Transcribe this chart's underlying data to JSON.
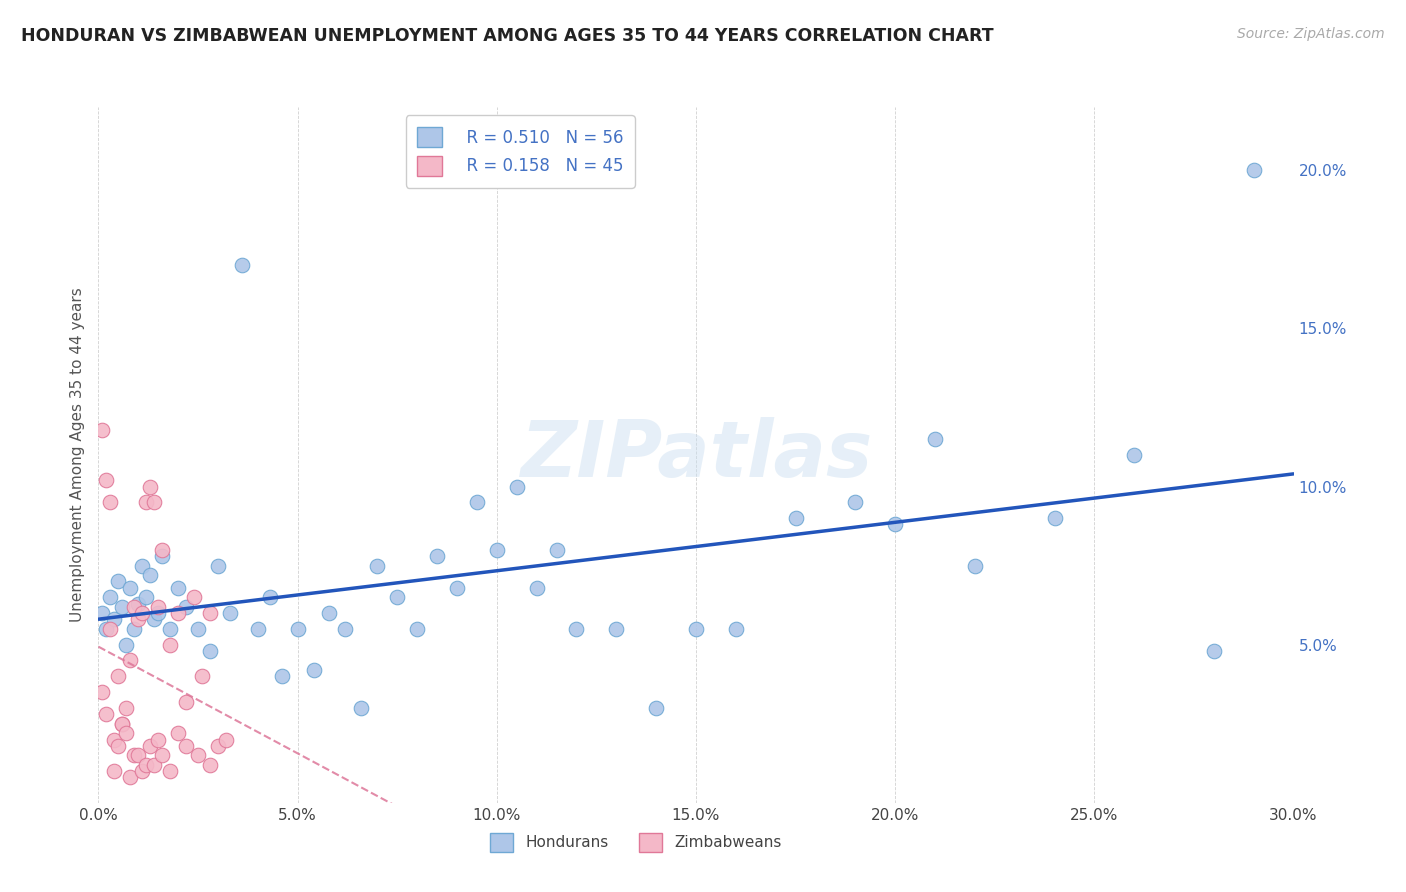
{
  "title": "HONDURAN VS ZIMBABWEAN UNEMPLOYMENT AMONG AGES 35 TO 44 YEARS CORRELATION CHART",
  "source": "Source: ZipAtlas.com",
  "ylabel": "Unemployment Among Ages 35 to 44 years",
  "xlim": [
    0.0,
    0.3
  ],
  "ylim": [
    0.0,
    0.22
  ],
  "honduran_color": "#aec6e8",
  "honduran_edge": "#6fa8d4",
  "zimbabwean_color": "#f4b8c8",
  "zimbabwean_edge": "#e07898",
  "trendline_honduran_color": "#2255bb",
  "trendline_zimbabwean_color": "#dd7799",
  "legend_R_honduran": "R = 0.510",
  "legend_N_honduran": "N = 56",
  "legend_R_zimbabwean": "R = 0.158",
  "legend_N_zimbabwean": "N = 45",
  "watermark": "ZIPatlas",
  "honduran_x": [
    0.001,
    0.002,
    0.003,
    0.004,
    0.005,
    0.006,
    0.007,
    0.008,
    0.009,
    0.01,
    0.011,
    0.012,
    0.013,
    0.014,
    0.015,
    0.016,
    0.018,
    0.02,
    0.022,
    0.025,
    0.028,
    0.03,
    0.033,
    0.036,
    0.04,
    0.043,
    0.046,
    0.05,
    0.054,
    0.058,
    0.062,
    0.066,
    0.07,
    0.075,
    0.08,
    0.085,
    0.09,
    0.095,
    0.1,
    0.105,
    0.11,
    0.115,
    0.12,
    0.13,
    0.14,
    0.15,
    0.16,
    0.175,
    0.19,
    0.2,
    0.21,
    0.22,
    0.24,
    0.26,
    0.28,
    0.29
  ],
  "honduran_y": [
    0.06,
    0.055,
    0.065,
    0.058,
    0.07,
    0.062,
    0.05,
    0.068,
    0.055,
    0.063,
    0.075,
    0.065,
    0.072,
    0.058,
    0.06,
    0.078,
    0.055,
    0.068,
    0.062,
    0.055,
    0.048,
    0.075,
    0.06,
    0.17,
    0.055,
    0.065,
    0.04,
    0.055,
    0.042,
    0.06,
    0.055,
    0.03,
    0.075,
    0.065,
    0.055,
    0.078,
    0.068,
    0.095,
    0.08,
    0.1,
    0.068,
    0.08,
    0.055,
    0.055,
    0.03,
    0.055,
    0.055,
    0.09,
    0.095,
    0.088,
    0.115,
    0.075,
    0.09,
    0.11,
    0.048,
    0.2
  ],
  "zimbabwean_x": [
    0.001,
    0.002,
    0.003,
    0.004,
    0.005,
    0.006,
    0.007,
    0.008,
    0.009,
    0.01,
    0.011,
    0.012,
    0.013,
    0.014,
    0.015,
    0.016,
    0.018,
    0.02,
    0.022,
    0.024,
    0.026,
    0.028,
    0.03,
    0.001,
    0.002,
    0.003,
    0.004,
    0.005,
    0.006,
    0.007,
    0.008,
    0.009,
    0.01,
    0.011,
    0.012,
    0.013,
    0.014,
    0.015,
    0.016,
    0.018,
    0.02,
    0.022,
    0.025,
    0.028,
    0.032
  ],
  "zimbabwean_y": [
    0.035,
    0.028,
    0.055,
    0.02,
    0.04,
    0.025,
    0.03,
    0.045,
    0.062,
    0.058,
    0.06,
    0.095,
    0.1,
    0.095,
    0.062,
    0.08,
    0.05,
    0.06,
    0.032,
    0.065,
    0.04,
    0.06,
    0.018,
    0.118,
    0.102,
    0.095,
    0.01,
    0.018,
    0.025,
    0.022,
    0.008,
    0.015,
    0.015,
    0.01,
    0.012,
    0.018,
    0.012,
    0.02,
    0.015,
    0.01,
    0.022,
    0.018,
    0.015,
    0.012,
    0.02
  ]
}
